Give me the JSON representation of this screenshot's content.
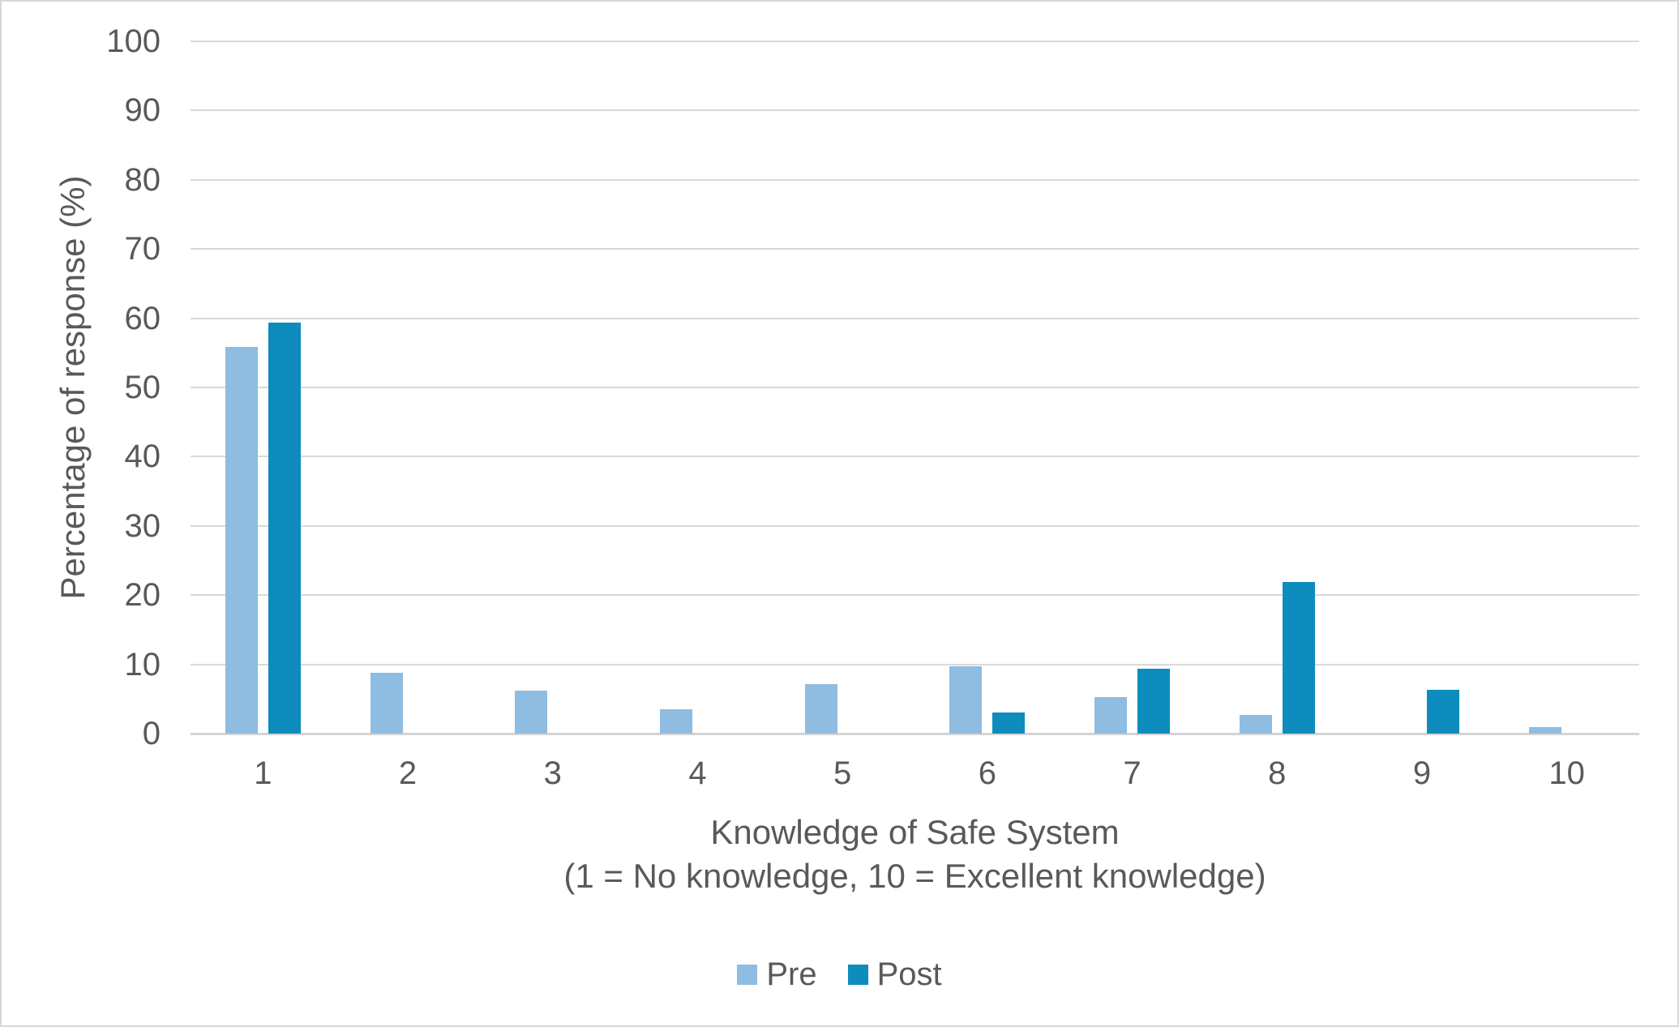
{
  "chart_data": {
    "type": "bar",
    "title": "",
    "categories": [
      "1",
      "2",
      "3",
      "4",
      "5",
      "6",
      "7",
      "8",
      "9",
      "10"
    ],
    "series": [
      {
        "name": "Pre",
        "color": "#8FBCE1",
        "values": [
          55.8,
          8.8,
          6.2,
          3.5,
          7.1,
          9.7,
          5.3,
          2.7,
          0,
          0.9
        ]
      },
      {
        "name": "Post",
        "color": "#0E8CBE",
        "values": [
          59.4,
          0,
          0,
          0,
          0,
          3.1,
          9.4,
          21.9,
          6.3,
          0
        ]
      }
    ],
    "xlabel_line1": "Knowledge of Safe System",
    "xlabel_line2": "(1 = No knowledge, 10 = Excellent knowledge)",
    "ylabel": "Percentage of response (%)",
    "ylim": [
      0,
      100
    ],
    "ytick_step": 10,
    "grid": true,
    "legend_position": "bottom",
    "gridline_color": "#D9D9D9",
    "text_color": "#595959"
  }
}
